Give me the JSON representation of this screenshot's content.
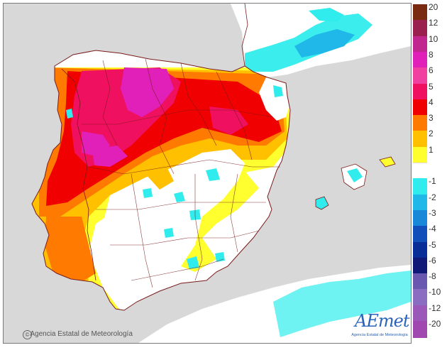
{
  "map": {
    "agency_name": "Agencia Estatal de Meteorología",
    "copyright_symbol": "©",
    "logo_text": "AEmet",
    "logo_subtitle": "Agencia Estatal de Meteorología"
  },
  "legend": {
    "items": [
      {
        "label": "20",
        "color": "#7a2a10"
      },
      {
        "label": "12",
        "color": "#9a2050"
      },
      {
        "label": "10",
        "color": "#c02890"
      },
      {
        "label": "8",
        "color": "#e020b8"
      },
      {
        "label": "6",
        "color": "#f040a0"
      },
      {
        "label": "5",
        "color": "#f01060"
      },
      {
        "label": "4",
        "color": "#f00000"
      },
      {
        "label": "3",
        "color": "#ff7a00"
      },
      {
        "label": "2",
        "color": "#ffc000"
      },
      {
        "label": "1",
        "color": "#ffff30"
      },
      {
        "label": "",
        "color": "#ffffff"
      },
      {
        "label": "-1",
        "color": "#30ecec"
      },
      {
        "label": "-2",
        "color": "#20b8e8"
      },
      {
        "label": "-3",
        "color": "#1a88d8"
      },
      {
        "label": "-4",
        "color": "#1050b8"
      },
      {
        "label": "-5",
        "color": "#0a2e98"
      },
      {
        "label": "-6",
        "color": "#101878"
      },
      {
        "label": "-8",
        "color": "#6a58b0"
      },
      {
        "label": "-10",
        "color": "#8a6cc0"
      },
      {
        "label": "-12",
        "color": "#9a58b8"
      },
      {
        "label": "-20",
        "color": "#a048b0"
      }
    ]
  }
}
